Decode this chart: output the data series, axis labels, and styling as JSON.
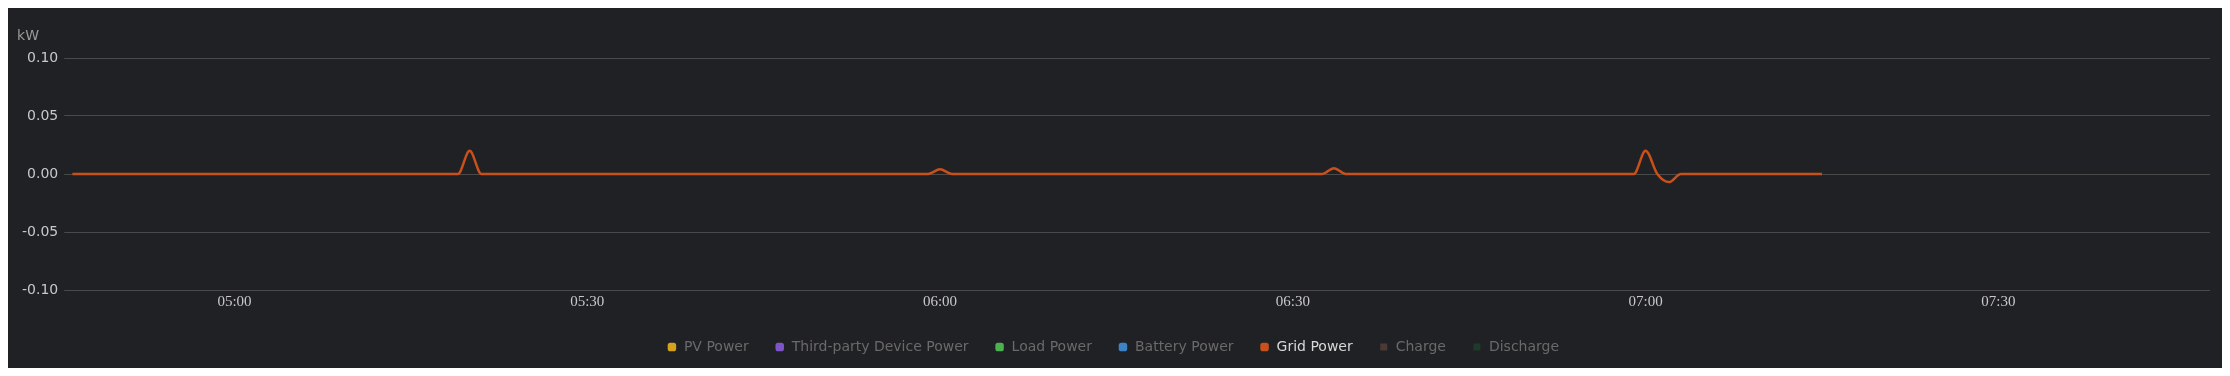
{
  "chart_data": {
    "type": "line",
    "ylabel": "kW",
    "ylim": [
      -0.1,
      0.1
    ],
    "yticks": [
      {
        "value": 0.1,
        "label": "0.10"
      },
      0.05,
      {
        "value": 0,
        "label": "0.00"
      },
      -0.05,
      {
        "value": -0.1,
        "label": "-0.10"
      }
    ],
    "xlim": [
      4.77,
      7.8
    ],
    "xticks": [
      {
        "value": 5,
        "label": "05:00"
      },
      {
        "value": 5.5,
        "label": "05:30"
      },
      {
        "value": 6,
        "label": "06:00"
      },
      {
        "value": 6.5,
        "label": "06:30"
      },
      {
        "value": 7,
        "label": "07:00"
      },
      {
        "value": 7.5,
        "label": "07:30"
      }
    ],
    "x": [
      4.77,
      5.3167,
      5.3333,
      5.35,
      5.9833,
      6.0,
      6.0167,
      6.5417,
      6.5583,
      6.575,
      6.9833,
      7.0,
      7.0167,
      7.0333,
      7.05,
      7.25
    ],
    "grid": "y",
    "legend": "bottom",
    "marker": "none",
    "line_style": "solid",
    "series": [
      {
        "name": "PV Power",
        "color": "#d4a21c",
        "values": [
          null,
          null,
          null,
          null,
          null,
          null,
          null,
          null,
          null,
          null,
          null,
          null,
          null,
          null,
          null,
          null
        ]
      },
      {
        "name": "Third-party Device Power",
        "color": "#7e55c9",
        "values": [
          null,
          null,
          null,
          null,
          null,
          null,
          null,
          null,
          null,
          null,
          null,
          null,
          null,
          null,
          null,
          null
        ]
      },
      {
        "name": "Load Power",
        "color": "#4caf50",
        "values": [
          null,
          null,
          null,
          null,
          null,
          null,
          null,
          null,
          null,
          null,
          null,
          null,
          null,
          null,
          null,
          null
        ]
      },
      {
        "name": "Battery Power",
        "color": "#3c82c4",
        "values": [
          null,
          null,
          null,
          null,
          null,
          null,
          null,
          null,
          null,
          null,
          null,
          null,
          null,
          null,
          null,
          null
        ]
      },
      {
        "name": "Grid Power",
        "color": "#c8501a",
        "values": [
          0,
          0,
          0.02,
          0,
          0,
          0.004,
          0,
          0,
          0.005,
          0,
          0,
          0.02,
          0,
          -0.007,
          0,
          0
        ]
      },
      {
        "name": "Charge",
        "type": "bar",
        "color": "#4a3a33",
        "values": [
          null,
          null,
          null,
          null,
          null,
          null,
          null,
          null,
          null,
          null,
          null,
          null,
          null,
          null,
          null,
          null
        ]
      },
      {
        "name": "Discharge",
        "type": "bar",
        "color": "#1f3a2b",
        "values": [
          null,
          null,
          null,
          null,
          null,
          null,
          null,
          null,
          null,
          null,
          null,
          null,
          null,
          null,
          null,
          null
        ]
      }
    ]
  }
}
